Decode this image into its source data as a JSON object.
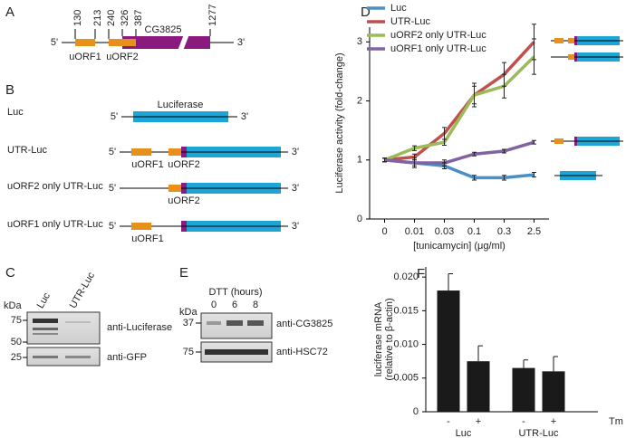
{
  "panel_a": {
    "label": "A",
    "ends": {
      "five": "5'",
      "three": "3'"
    },
    "positions": [
      130,
      213,
      240,
      326,
      387,
      1277
    ],
    "gene": "CG3825",
    "uorfs": [
      "uORF1",
      "uORF2"
    ]
  },
  "panel_b": {
    "label": "B",
    "reporter": "Luciferase",
    "constructs": [
      "Luc",
      "UTR-Luc",
      "uORF2 only UTR-Luc",
      "uORF1 only UTR-Luc"
    ]
  },
  "panel_c": {
    "label": "C",
    "unit": "kDa",
    "lanes": [
      "Luc",
      "UTR-Luc"
    ],
    "markers": [
      75,
      50,
      25
    ],
    "antibodies": [
      "anti-Luciferase",
      "anti-GFP"
    ]
  },
  "panel_e": {
    "label": "E",
    "treatment": "DTT (hours)",
    "lanes": [
      0,
      6,
      8
    ],
    "unit": "kDa",
    "markers": [
      37,
      75
    ],
    "antibodies": [
      "anti-CG3825",
      "anti-HSC72"
    ]
  },
  "chart_data": [
    {
      "panel": "D",
      "type": "line",
      "x_label": "[tunicamycin] (μg/ml)",
      "y_label": "Luciferase activity (fold-change)",
      "categories": [
        "0",
        "0.01",
        "0.03",
        "0.1",
        "0.3",
        "2.5"
      ],
      "ylim": [
        0,
        3.25
      ],
      "yticks": [
        0,
        1,
        2,
        3
      ],
      "legend": "top-left",
      "series": [
        {
          "name": "Luc",
          "color": "#4a90c8",
          "values": [
            1,
            0.95,
            0.9,
            0.7,
            0.7,
            0.75
          ],
          "errors": [
            0.03,
            0.05,
            0.05,
            0.04,
            0.04,
            0.04
          ]
        },
        {
          "name": "UTR-Luc",
          "color": "#c0504d",
          "values": [
            1,
            1.05,
            1.45,
            2.1,
            2.45,
            3.0
          ],
          "errors": [
            0.03,
            0.05,
            0.1,
            0.15,
            0.2,
            0.3
          ]
        },
        {
          "name": "uORF2 only UTR-Luc",
          "color": "#9bbb59",
          "values": [
            1,
            1.2,
            1.3,
            2.1,
            2.25,
            2.75
          ],
          "errors": [
            0.03,
            0.04,
            0.05,
            0.2,
            0.2,
            0.3
          ]
        },
        {
          "name": "uORF1 only UTR-Luc",
          "color": "#8064a2",
          "values": [
            1,
            0.95,
            0.95,
            1.1,
            1.15,
            1.3
          ],
          "errors": [
            0.03,
            0.08,
            0.05,
            0.03,
            0.03,
            0.03
          ]
        }
      ]
    },
    {
      "panel": "F",
      "type": "bar",
      "y_label": [
        "luciferase mRNA",
        "(relative to β-actin)"
      ],
      "categories": [
        "-",
        "+",
        "-",
        "+"
      ],
      "groups": [
        "Luc",
        "UTR-Luc"
      ],
      "treatment": "Tm",
      "values": [
        0.018,
        0.0075,
        0.0065,
        0.006
      ],
      "errors": [
        0.0025,
        0.0023,
        0.0012,
        0.0022
      ],
      "color": "#1a1a1a",
      "ylim": [
        0,
        0.0215
      ],
      "yticks": [
        0,
        0.005,
        {
          "value": 0.01,
          "label": "0.010"
        },
        0.015,
        {
          "value": 0.02,
          "label": "0.020"
        }
      ]
    }
  ]
}
